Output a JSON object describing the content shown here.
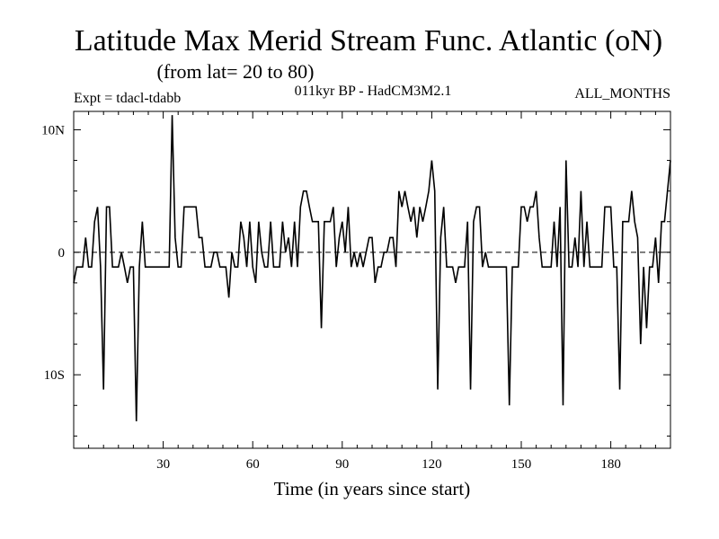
{
  "chart_data": {
    "type": "line",
    "title": "Latitude Max Merid Stream Func. Atlantic (oN)",
    "subtitle": "(from lat= 20 to 80)",
    "experiment": "Expt = tdacl-tdabb",
    "model": "011kyr BP - HadCM3M2.1",
    "months": "ALL_MONTHS",
    "xlabel": "Time (in years since start)",
    "ylabel": "",
    "xlim": [
      0,
      200
    ],
    "ylim": [
      -16,
      11.5
    ],
    "x_ticks": [
      30,
      60,
      90,
      120,
      150,
      180
    ],
    "x_tick_labels": [
      "30",
      "60",
      "90",
      "120",
      "150",
      "180"
    ],
    "y_ticks": [
      10,
      0,
      -10
    ],
    "y_tick_labels": [
      "10N",
      "0",
      "10S"
    ],
    "zero_line": "dashed",
    "series": [
      {
        "name": "lat max",
        "x": [
          0,
          1,
          2,
          3,
          4,
          5,
          6,
          7,
          8,
          9,
          10,
          11,
          12,
          13,
          14,
          15,
          16,
          17,
          18,
          19,
          20,
          21,
          22,
          23,
          24,
          25,
          26,
          27,
          28,
          29,
          30,
          31,
          32,
          33,
          34,
          35,
          36,
          37,
          38,
          39,
          40,
          41,
          42,
          43,
          44,
          45,
          46,
          47,
          48,
          49,
          50,
          51,
          52,
          53,
          54,
          55,
          56,
          57,
          58,
          59,
          60,
          61,
          62,
          63,
          64,
          65,
          66,
          67,
          68,
          69,
          70,
          71,
          72,
          73,
          74,
          75,
          76,
          77,
          78,
          79,
          80,
          81,
          82,
          83,
          84,
          85,
          86,
          87,
          88,
          89,
          90,
          91,
          92,
          93,
          94,
          95,
          96,
          97,
          98,
          99,
          100,
          101,
          102,
          103,
          104,
          105,
          106,
          107,
          108,
          109,
          110,
          111,
          112,
          113,
          114,
          115,
          116,
          117,
          118,
          119,
          120,
          121,
          122,
          123,
          124,
          125,
          126,
          127,
          128,
          129,
          130,
          131,
          132,
          133,
          134,
          135,
          136,
          137,
          138,
          139,
          140,
          141,
          142,
          143,
          144,
          145,
          146,
          147,
          148,
          149,
          150,
          151,
          152,
          153,
          154,
          155,
          156,
          157,
          158,
          159,
          160,
          161,
          162,
          163,
          164,
          165,
          166,
          167,
          168,
          169,
          170,
          171,
          172,
          173,
          174,
          175,
          176,
          177,
          178,
          179,
          180,
          181,
          182,
          183,
          184,
          185,
          186,
          187,
          188,
          189,
          190,
          191,
          192,
          193,
          194,
          195,
          196,
          197,
          198,
          199,
          200
        ],
        "y": [
          -2.5,
          -1.2,
          -1.2,
          -1.2,
          1.2,
          -1.2,
          -1.2,
          2.5,
          3.7,
          -1.2,
          -11.2,
          3.7,
          3.7,
          -1.2,
          -1.2,
          -1.2,
          0,
          -1.2,
          -2.5,
          -1.2,
          -1.2,
          -13.8,
          -1.2,
          2.5,
          -1.2,
          -1.2,
          -1.2,
          -1.2,
          -1.2,
          -1.2,
          -1.2,
          -1.2,
          -1.2,
          11.2,
          1.2,
          -1.2,
          -1.2,
          3.7,
          3.7,
          3.7,
          3.7,
          3.7,
          1.2,
          1.2,
          -1.2,
          -1.2,
          -1.2,
          0,
          0,
          -1.2,
          -1.2,
          -1.2,
          -3.7,
          0,
          -1.2,
          -1.2,
          2.5,
          1.2,
          -1.2,
          2.5,
          -1.2,
          -2.5,
          2.5,
          0,
          -1.2,
          -1.2,
          2.5,
          -1.2,
          -1.2,
          -1.2,
          2.5,
          0,
          1.2,
          -1.2,
          2.5,
          -1.2,
          3.7,
          5,
          5,
          3.7,
          2.5,
          2.5,
          2.5,
          -6.2,
          2.5,
          2.5,
          2.5,
          3.7,
          -1.2,
          1.2,
          2.5,
          0,
          3.7,
          -1.2,
          0,
          -1.2,
          0,
          -1.2,
          0,
          1.2,
          1.2,
          -2.5,
          -1.2,
          -1.2,
          0,
          0,
          1.2,
          1.2,
          -1.2,
          5,
          3.7,
          5,
          3.7,
          2.5,
          3.7,
          1.2,
          3.7,
          2.5,
          3.7,
          5,
          7.5,
          5,
          -11.2,
          1.2,
          3.7,
          -1.2,
          -1.2,
          -1.2,
          -2.5,
          -1.2,
          -1.2,
          -1.2,
          2.5,
          -11.2,
          2.5,
          3.7,
          3.7,
          -1.2,
          0,
          -1.2,
          -1.2,
          -1.2,
          -1.2,
          -1.2,
          -1.2,
          -1.2,
          -12.5,
          -1.2,
          -1.2,
          -1.2,
          3.7,
          3.7,
          2.5,
          3.7,
          3.7,
          5,
          1.2,
          -1.2,
          -1.2,
          -1.2,
          -1.2,
          2.5,
          -1.2,
          3.7,
          -12.5,
          7.5,
          -1.2,
          -1.2,
          1.2,
          -1.2,
          5,
          -1.2,
          2.5,
          -1.2,
          -1.2,
          -1.2,
          -1.2,
          -1.2,
          3.7,
          3.7,
          3.7,
          -1.2,
          -1.2,
          -11.2,
          2.5,
          2.5,
          2.5,
          5,
          2.5,
          1.2,
          -7.5,
          -1.2,
          -6.2,
          -1.2,
          -1.2,
          1.2,
          -2.5,
          2.5,
          2.5,
          5,
          7.5
        ]
      }
    ]
  }
}
